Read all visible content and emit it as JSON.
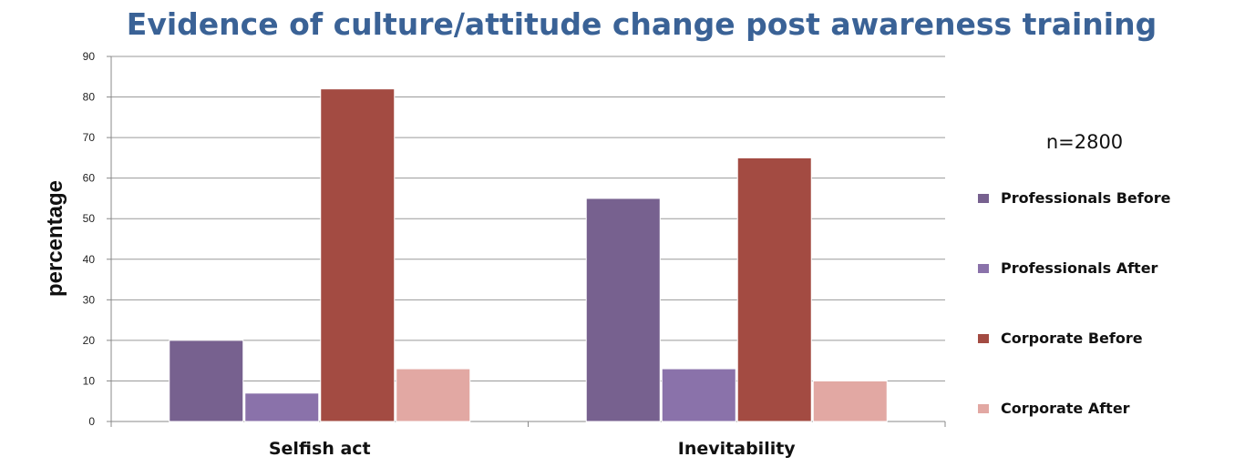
{
  "chart_data": {
    "type": "bar",
    "title": "Evidence of culture/attitude change post awareness training",
    "ylabel": "percentage",
    "xlabel": "",
    "ylim": [
      0,
      90
    ],
    "yticks": [
      0,
      10,
      20,
      30,
      40,
      50,
      60,
      70,
      80,
      90
    ],
    "grid": true,
    "legend_position": "right",
    "annotation": "n=2800",
    "categories": [
      "Selfish act",
      "Inevitability"
    ],
    "series": [
      {
        "name": "Professionals Before",
        "color": "#77618f",
        "values": [
          20,
          55
        ]
      },
      {
        "name": "Professionals After",
        "color": "#8a72aa",
        "values": [
          7,
          13
        ]
      },
      {
        "name": "Corporate Before",
        "color": "#a34b42",
        "values": [
          82,
          65
        ]
      },
      {
        "name": "Corporate After",
        "color": "#e2a8a3",
        "values": [
          13,
          10
        ]
      }
    ]
  }
}
